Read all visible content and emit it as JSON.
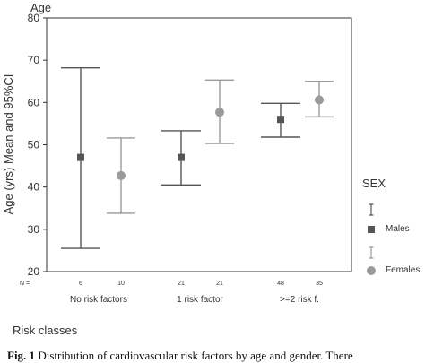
{
  "chart_data": {
    "type": "errorbar",
    "ytitle_top": "Age",
    "ylabel": "Age (yrs) Mean and 95%CI",
    "xlabel": "Risk classes",
    "ylim": [
      20,
      80
    ],
    "yticks": [
      20,
      30,
      40,
      50,
      60,
      70,
      80
    ],
    "n_label": "N =",
    "categories": [
      "No risk factors",
      "1 risk factor",
      ">=2 risk f."
    ],
    "legend_title": "SEX",
    "series": [
      {
        "name": "Males",
        "color": "#555555",
        "n": [
          "6",
          "21",
          "48"
        ],
        "mean": [
          47,
          47,
          56
        ],
        "lower": [
          25.5,
          40.5,
          51.8
        ],
        "upper": [
          68.2,
          53.3,
          59.8
        ]
      },
      {
        "name": "Females",
        "color": "#9a9a9a",
        "n": [
          "10",
          "21",
          "35"
        ],
        "mean": [
          42.7,
          57.7,
          60.6
        ],
        "lower": [
          33.8,
          50.3,
          56.6
        ],
        "upper": [
          51.6,
          65.3,
          65.0
        ]
      }
    ]
  },
  "caption": {
    "label": "Fig. 1",
    "text": "Distribution of cardiovascular risk factors by age and gender. There"
  }
}
